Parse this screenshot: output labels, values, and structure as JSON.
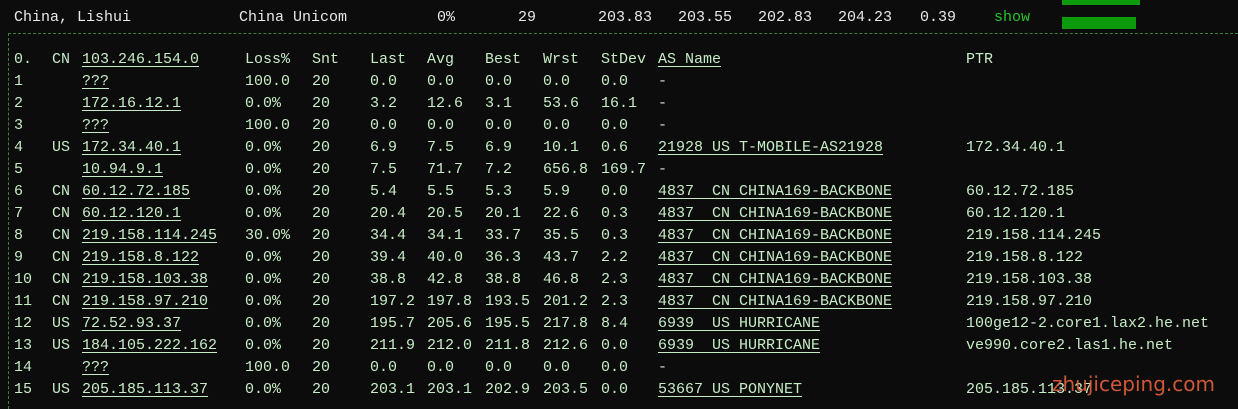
{
  "summary": {
    "location": "China, Lishui",
    "isp": "China Unicom",
    "loss": "0%",
    "snt": "29",
    "last": "203.83",
    "avg": "203.55",
    "best": "202.83",
    "worst": "204.23",
    "stdev": "0.39",
    "action": "show"
  },
  "table": {
    "header": [
      "0.",
      "CN",
      "103.246.154.0",
      "Loss%",
      "Snt",
      "Last",
      "Avg",
      "Best",
      "Wrst",
      "StDev",
      "AS Name",
      "PTR"
    ],
    "rows": [
      [
        "1",
        null,
        "???",
        "100.0",
        "20",
        "0.0",
        "0.0",
        "0.0",
        "0.0",
        "0.0",
        "-",
        null
      ],
      [
        "2",
        null,
        "172.16.12.1",
        "0.0%",
        "20",
        "3.2",
        "12.6",
        "3.1",
        "53.6",
        "16.1",
        "-",
        null
      ],
      [
        "3",
        null,
        "???",
        "100.0",
        "20",
        "0.0",
        "0.0",
        "0.0",
        "0.0",
        "0.0",
        "-",
        null
      ],
      [
        "4",
        "US",
        "172.34.40.1",
        "0.0%",
        "20",
        "6.9",
        "7.5",
        "6.9",
        "10.1",
        "0.6",
        "21928 US T-MOBILE-AS21928",
        "172.34.40.1"
      ],
      [
        "5",
        null,
        "10.94.9.1",
        "0.0%",
        "20",
        "7.5",
        "71.7",
        "7.2",
        "656.8",
        "169.7",
        "-",
        null
      ],
      [
        "6",
        "CN",
        "60.12.72.185",
        "0.0%",
        "20",
        "5.4",
        "5.5",
        "5.3",
        "5.9",
        "0.0",
        "4837  CN CHINA169-BACKBONE",
        "60.12.72.185"
      ],
      [
        "7",
        "CN",
        "60.12.120.1",
        "0.0%",
        "20",
        "20.4",
        "20.5",
        "20.1",
        "22.6",
        "0.3",
        "4837  CN CHINA169-BACKBONE",
        "60.12.120.1"
      ],
      [
        "8",
        "CN",
        "219.158.114.245",
        "30.0%",
        "20",
        "34.4",
        "34.1",
        "33.7",
        "35.5",
        "0.3",
        "4837  CN CHINA169-BACKBONE",
        "219.158.114.245"
      ],
      [
        "9",
        "CN",
        "219.158.8.122",
        "0.0%",
        "20",
        "39.4",
        "40.0",
        "36.3",
        "43.7",
        "2.2",
        "4837  CN CHINA169-BACKBONE",
        "219.158.8.122"
      ],
      [
        "10",
        "CN",
        "219.158.103.38",
        "0.0%",
        "20",
        "38.8",
        "42.8",
        "38.8",
        "46.8",
        "2.3",
        "4837  CN CHINA169-BACKBONE",
        "219.158.103.38"
      ],
      [
        "11",
        "CN",
        "219.158.97.210",
        "0.0%",
        "20",
        "197.2",
        "197.8",
        "193.5",
        "201.2",
        "2.3",
        "4837  CN CHINA169-BACKBONE",
        "219.158.97.210"
      ],
      [
        "12",
        "US",
        "72.52.93.37",
        "0.0%",
        "20",
        "195.7",
        "205.6",
        "195.5",
        "217.8",
        "8.4",
        "6939  US HURRICANE",
        "100ge12-2.core1.lax2.he.net"
      ],
      [
        "13",
        "US",
        "184.105.222.162",
        "0.0%",
        "20",
        "211.9",
        "212.0",
        "211.8",
        "212.6",
        "0.0",
        "6939  US HURRICANE",
        "ve990.core2.las1.he.net"
      ],
      [
        "14",
        null,
        "???",
        "100.0",
        "20",
        "0.0",
        "0.0",
        "0.0",
        "0.0",
        "0.0",
        "-",
        null
      ],
      [
        "15",
        "US",
        "205.185.113.37",
        "0.0%",
        "20",
        "203.1",
        "203.1",
        "202.9",
        "203.5",
        "0.0",
        "53667 US PONYNET",
        "205.185.113.37"
      ]
    ]
  },
  "watermark": "zhujiceping.com"
}
